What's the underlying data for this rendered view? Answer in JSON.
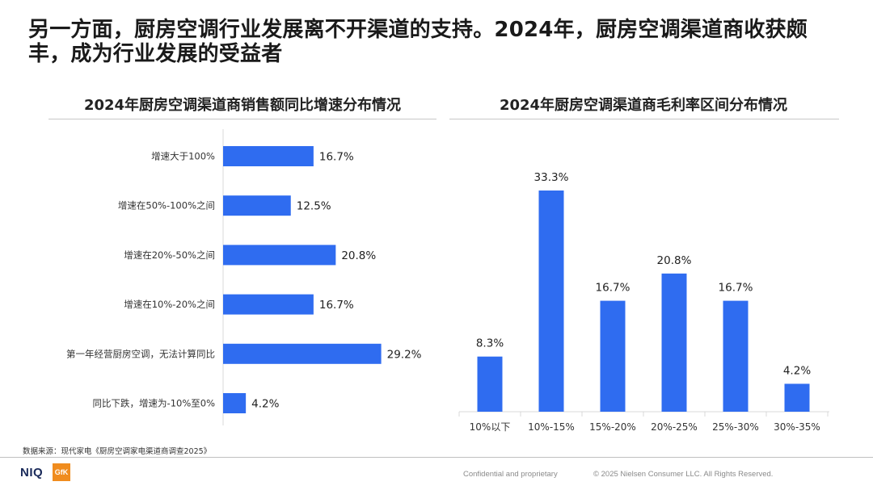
{
  "headline": "另一方面，厨房空调行业发展离不开渠道的支持。2024年，厨房空调渠道商收获颇丰，成为行业发展的受益者",
  "chart_data": [
    {
      "type": "bar",
      "orientation": "horizontal",
      "title": "2024年厨房空调渠道商销售额同比增速分布情况",
      "categories": [
        "增速大于100%",
        "增速在50%-100%之间",
        "增速在20%-50%之间",
        "增速在10%-20%之间",
        "第一年经营厨房空调，无法计算同比",
        "同比下跌，增速为-10%至0%"
      ],
      "values": [
        16.7,
        12.5,
        20.8,
        16.7,
        29.2,
        4.2
      ],
      "labels": [
        "16.7%",
        "12.5%",
        "20.8%",
        "16.7%",
        "29.2%",
        "4.2%"
      ],
      "xlim": [
        0,
        30
      ],
      "grid": false,
      "legend": "none",
      "color": "#2f6cf0"
    },
    {
      "type": "bar",
      "orientation": "vertical",
      "title": "2024年厨房空调渠道商毛利率区间分布情况",
      "categories": [
        "10%以下",
        "10%-15%",
        "15%-20%",
        "20%-25%",
        "25%-30%",
        "30%-35%"
      ],
      "values": [
        8.3,
        33.3,
        16.7,
        20.8,
        16.7,
        4.2
      ],
      "labels": [
        "8.3%",
        "33.3%",
        "16.7%",
        "20.8%",
        "16.7%",
        "4.2%"
      ],
      "ylim": [
        0,
        35
      ],
      "grid": false,
      "legend": "none",
      "color": "#2f6cf0"
    }
  ],
  "source": "数据来源：现代家电《厨房空调家电渠道商调查2025》",
  "footer": {
    "logo_niq": "NIQ",
    "logo_gfk": "GfK",
    "confidential": "Confidential and proprietary",
    "copyright": "© 2025 Nielsen Consumer LLC. All Rights Reserved."
  }
}
